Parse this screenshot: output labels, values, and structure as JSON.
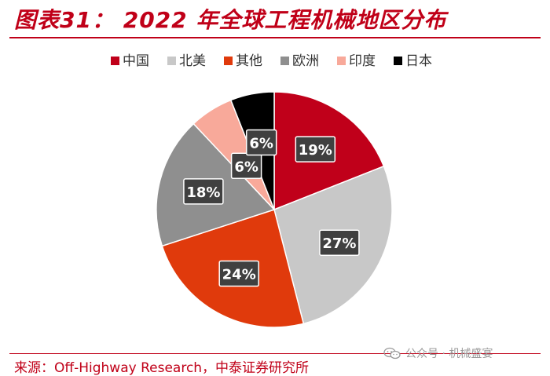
{
  "header": {
    "title": "图表31： 2022 年全球工程机械地区分布"
  },
  "footer": {
    "source": "来源：Off-Highway Research，中泰证券研究所",
    "watermark": "公众号 · 机械盛宴",
    "watermark_icon": "wechat-icon"
  },
  "chart_data": {
    "type": "pie",
    "title": "",
    "legend_position": "top",
    "start_angle": "12 o'clock, clockwise",
    "slices": [
      {
        "label": "中国",
        "value": 19,
        "display": "19%",
        "color": "#c0001a"
      },
      {
        "label": "北美",
        "value": 27,
        "display": "27%",
        "color": "#c8c8c8"
      },
      {
        "label": "其他",
        "value": 24,
        "display": "24%",
        "color": "#e03a0c"
      },
      {
        "label": "欧洲",
        "value": 18,
        "display": "18%",
        "color": "#8f8f8f"
      },
      {
        "label": "印度",
        "value": 6,
        "display": "6%",
        "color": "#f8a99a"
      },
      {
        "label": "日本",
        "value": 6,
        "display": "6%",
        "color": "#000000"
      }
    ]
  }
}
